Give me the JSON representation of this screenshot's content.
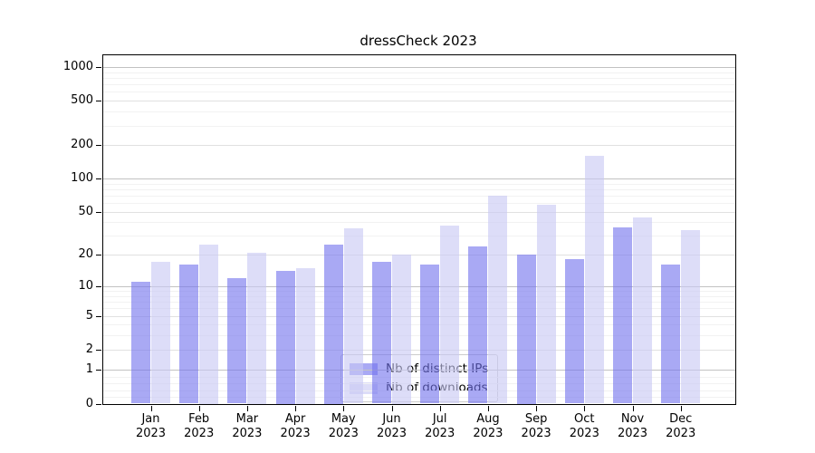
{
  "chart": {
    "title": "dressCheck 2023"
  },
  "chart_data": {
    "type": "bar",
    "title": "dressCheck 2023",
    "categories": [
      "Jan 2023",
      "Feb 2023",
      "Mar 2023",
      "Apr 2023",
      "May 2023",
      "Jun 2023",
      "Jul 2023",
      "Aug 2023",
      "Sep 2023",
      "Oct 2023",
      "Nov 2023",
      "Dec 2023"
    ],
    "x_tick_months": [
      "Jan",
      "Feb",
      "Mar",
      "Apr",
      "May",
      "Jun",
      "Jul",
      "Aug",
      "Sep",
      "Oct",
      "Nov",
      "Dec"
    ],
    "x_tick_year": "2023",
    "series": [
      {
        "name": "Nb of distinct IPs",
        "color": "rgba(116,116,238,0.62)",
        "values": [
          11,
          16,
          12,
          14,
          25,
          17,
          16,
          24,
          20,
          18,
          36,
          16
        ]
      },
      {
        "name": "Nb of downloads",
        "color": "rgba(200,200,243,0.62)",
        "values": [
          17,
          25,
          21,
          15,
          35,
          20,
          37,
          70,
          58,
          160,
          44,
          34
        ]
      }
    ],
    "y_axis": {
      "scale": "symlog",
      "ticks": [
        0,
        1,
        2,
        5,
        10,
        20,
        50,
        100,
        200,
        500,
        1000
      ],
      "minor_ticks": [
        0.2,
        0.4,
        0.6,
        0.8,
        3,
        4,
        6,
        7,
        8,
        9,
        30,
        40,
        60,
        70,
        80,
        90,
        300,
        400,
        600,
        700,
        800,
        900
      ],
      "range": [
        0,
        1000
      ]
    },
    "legend": {
      "position": "lower-center-inside",
      "entries": [
        "Nb of distinct IPs",
        "Nb of downloads"
      ]
    },
    "grid": "horizontal-major-and-minor",
    "colors": {
      "bar_distinct_ips": "rgba(116,116,238,0.62)",
      "bar_downloads": "rgba(200,200,243,0.62)",
      "grid_major": "#c2c2c2",
      "grid_labeled": "#e1e1e1",
      "grid_minor": "#f2f2f2"
    }
  }
}
